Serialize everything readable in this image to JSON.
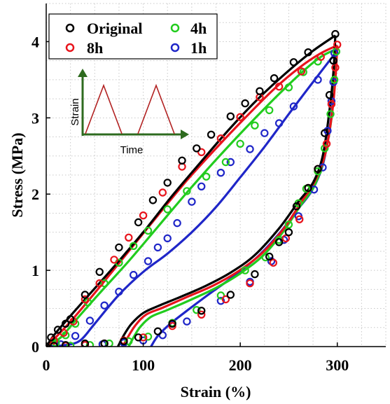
{
  "chart_data": {
    "type": "scatter",
    "xlabel": "Strain (%)",
    "ylabel": "Stress (MPa)",
    "xlim": [
      0,
      350
    ],
    "ylim": [
      0,
      4.5
    ],
    "xticks": [
      "0",
      "100",
      "200",
      "300"
    ],
    "yticks": [
      "0",
      "1",
      "2",
      "3",
      "4"
    ],
    "grid": "dotted",
    "legend_position": "top-left",
    "series": [
      {
        "name": "Original",
        "color": "#000000",
        "points": [
          [
            0,
            0
          ],
          [
            5,
            0.12
          ],
          [
            12,
            0.22
          ],
          [
            20,
            0.3
          ],
          [
            25,
            0.36
          ],
          [
            40,
            0.68
          ],
          [
            55,
            0.98
          ],
          [
            75,
            1.3
          ],
          [
            95,
            1.63
          ],
          [
            110,
            1.92
          ],
          [
            125,
            2.15
          ],
          [
            140,
            2.44
          ],
          [
            155,
            2.6
          ],
          [
            170,
            2.78
          ],
          [
            190,
            3.02
          ],
          [
            205,
            3.19
          ],
          [
            220,
            3.35
          ],
          [
            235,
            3.52
          ],
          [
            255,
            3.73
          ],
          [
            270,
            3.86
          ],
          [
            298,
            4.1
          ],
          [
            296,
            3.75
          ],
          [
            292,
            3.3
          ],
          [
            287,
            2.8
          ],
          [
            280,
            2.33
          ],
          [
            270,
            2.08
          ],
          [
            258,
            1.84
          ],
          [
            250,
            1.5
          ],
          [
            240,
            1.37
          ],
          [
            230,
            1.18
          ],
          [
            215,
            0.95
          ],
          [
            190,
            0.68
          ],
          [
            160,
            0.47
          ],
          [
            130,
            0.3
          ],
          [
            115,
            0.2
          ],
          [
            95,
            0.12
          ],
          [
            80,
            0.07
          ],
          [
            60,
            0.04
          ],
          [
            40,
            0.04
          ],
          [
            20,
            0.02
          ],
          [
            8,
            0.01
          ]
        ],
        "fit_load": [
          [
            0,
            0
          ],
          [
            8,
            0.15
          ],
          [
            20,
            0.33
          ],
          [
            40,
            0.62
          ],
          [
            70,
            1.05
          ],
          [
            100,
            1.5
          ],
          [
            130,
            1.98
          ],
          [
            160,
            2.43
          ],
          [
            190,
            2.87
          ],
          [
            220,
            3.27
          ],
          [
            250,
            3.62
          ],
          [
            275,
            3.88
          ],
          [
            298,
            4.08
          ]
        ],
        "fit_unload": [
          [
            298,
            4.08
          ],
          [
            296,
            3.6
          ],
          [
            292,
            3.1
          ],
          [
            285,
            2.5
          ],
          [
            275,
            2.15
          ],
          [
            260,
            1.9
          ],
          [
            240,
            1.55
          ],
          [
            215,
            1.2
          ],
          [
            190,
            0.97
          ],
          [
            165,
            0.8
          ],
          [
            140,
            0.66
          ],
          [
            115,
            0.53
          ],
          [
            100,
            0.44
          ],
          [
            88,
            0.3
          ],
          [
            80,
            0.15
          ],
          [
            74,
            0
          ]
        ]
      },
      {
        "name": "8h",
        "color": "#e8141c",
        "points": [
          [
            0,
            0
          ],
          [
            8,
            0.08
          ],
          [
            18,
            0.18
          ],
          [
            28,
            0.33
          ],
          [
            40,
            0.62
          ],
          [
            55,
            0.83
          ],
          [
            70,
            1.14
          ],
          [
            85,
            1.43
          ],
          [
            100,
            1.72
          ],
          [
            120,
            2.02
          ],
          [
            140,
            2.36
          ],
          [
            160,
            2.55
          ],
          [
            180,
            2.73
          ],
          [
            200,
            3.01
          ],
          [
            220,
            3.27
          ],
          [
            240,
            3.41
          ],
          [
            263,
            3.61
          ],
          [
            283,
            3.8
          ],
          [
            300,
            3.96
          ],
          [
            298,
            3.66
          ],
          [
            294,
            3.18
          ],
          [
            289,
            2.66
          ],
          [
            280,
            2.33
          ],
          [
            270,
            2.08
          ],
          [
            261,
            1.67
          ],
          [
            247,
            1.42
          ],
          [
            234,
            1.1
          ],
          [
            210,
            0.83
          ],
          [
            185,
            0.62
          ],
          [
            160,
            0.42
          ],
          [
            130,
            0.27
          ],
          [
            100,
            0.12
          ],
          [
            80,
            0.08
          ],
          [
            60,
            0.04
          ],
          [
            40,
            0.02
          ],
          [
            20,
            0.01
          ]
        ],
        "fit_load": [
          [
            0,
            0
          ],
          [
            12,
            0.15
          ],
          [
            30,
            0.4
          ],
          [
            55,
            0.78
          ],
          [
            85,
            1.25
          ],
          [
            115,
            1.72
          ],
          [
            145,
            2.18
          ],
          [
            175,
            2.6
          ],
          [
            205,
            3.0
          ],
          [
            235,
            3.38
          ],
          [
            260,
            3.65
          ],
          [
            282,
            3.84
          ],
          [
            300,
            3.95
          ]
        ],
        "fit_unload": [
          [
            300,
            3.95
          ],
          [
            298,
            3.5
          ],
          [
            294,
            3.0
          ],
          [
            287,
            2.5
          ],
          [
            276,
            2.15
          ],
          [
            262,
            1.88
          ],
          [
            245,
            1.55
          ],
          [
            222,
            1.22
          ],
          [
            197,
            0.98
          ],
          [
            172,
            0.8
          ],
          [
            145,
            0.65
          ],
          [
            120,
            0.51
          ],
          [
            103,
            0.42
          ],
          [
            92,
            0.28
          ],
          [
            84,
            0.12
          ],
          [
            79,
            0
          ]
        ]
      },
      {
        "name": "4h",
        "color": "#22cc1e",
        "points": [
          [
            0,
            0
          ],
          [
            10,
            0.05
          ],
          [
            20,
            0.15
          ],
          [
            30,
            0.3
          ],
          [
            43,
            0.58
          ],
          [
            60,
            0.83
          ],
          [
            75,
            1.1
          ],
          [
            90,
            1.32
          ],
          [
            105,
            1.52
          ],
          [
            125,
            1.8
          ],
          [
            145,
            2.04
          ],
          [
            165,
            2.23
          ],
          [
            185,
            2.42
          ],
          [
            200,
            2.66
          ],
          [
            215,
            2.9
          ],
          [
            230,
            3.1
          ],
          [
            250,
            3.4
          ],
          [
            265,
            3.6
          ],
          [
            280,
            3.74
          ],
          [
            299,
            3.87
          ],
          [
            297,
            3.5
          ],
          [
            293,
            3.05
          ],
          [
            287,
            2.6
          ],
          [
            280,
            2.3
          ],
          [
            268,
            2.07
          ],
          [
            260,
            1.88
          ],
          [
            250,
            1.6
          ],
          [
            240,
            1.4
          ],
          [
            226,
            1.17
          ],
          [
            205,
            1.0
          ],
          [
            180,
            0.67
          ],
          [
            155,
            0.48
          ],
          [
            130,
            0.31
          ],
          [
            105,
            0.13
          ],
          [
            85,
            0.07
          ],
          [
            65,
            0.04
          ],
          [
            45,
            0.02
          ],
          [
            25,
            0.01
          ]
        ],
        "fit_load": [
          [
            0,
            0
          ],
          [
            15,
            0.12
          ],
          [
            30,
            0.34
          ],
          [
            55,
            0.7
          ],
          [
            85,
            1.12
          ],
          [
            115,
            1.57
          ],
          [
            145,
            2.02
          ],
          [
            175,
            2.45
          ],
          [
            205,
            2.86
          ],
          [
            235,
            3.25
          ],
          [
            262,
            3.58
          ],
          [
            283,
            3.8
          ],
          [
            299,
            3.9
          ]
        ],
        "fit_unload": [
          [
            299,
            3.9
          ],
          [
            297,
            3.4
          ],
          [
            293,
            2.9
          ],
          [
            286,
            2.45
          ],
          [
            276,
            2.1
          ],
          [
            262,
            1.85
          ],
          [
            245,
            1.52
          ],
          [
            224,
            1.2
          ],
          [
            200,
            0.96
          ],
          [
            175,
            0.77
          ],
          [
            150,
            0.62
          ],
          [
            125,
            0.48
          ],
          [
            108,
            0.39
          ],
          [
            97,
            0.26
          ],
          [
            90,
            0.12
          ],
          [
            85,
            0
          ]
        ]
      },
      {
        "name": "1h",
        "color": "#1f26c8",
        "points": [
          [
            0,
            0
          ],
          [
            15,
            0.03
          ],
          [
            30,
            0.14
          ],
          [
            45,
            0.34
          ],
          [
            60,
            0.54
          ],
          [
            75,
            0.72
          ],
          [
            90,
            0.94
          ],
          [
            105,
            1.12
          ],
          [
            115,
            1.3
          ],
          [
            125,
            1.42
          ],
          [
            135,
            1.62
          ],
          [
            150,
            1.9
          ],
          [
            160,
            2.1
          ],
          [
            180,
            2.28
          ],
          [
            190,
            2.42
          ],
          [
            210,
            2.59
          ],
          [
            225,
            2.8
          ],
          [
            240,
            2.93
          ],
          [
            255,
            3.15
          ],
          [
            280,
            3.5
          ],
          [
            297,
            3.85
          ],
          [
            296,
            3.47
          ],
          [
            294,
            3.22
          ],
          [
            290,
            2.83
          ],
          [
            285,
            2.35
          ],
          [
            276,
            2.06
          ],
          [
            260,
            1.71
          ],
          [
            245,
            1.4
          ],
          [
            232,
            1.12
          ],
          [
            210,
            0.85
          ],
          [
            180,
            0.6
          ],
          [
            145,
            0.33
          ],
          [
            120,
            0.15
          ],
          [
            100,
            0.08
          ],
          [
            80,
            0.05
          ],
          [
            58,
            0.03
          ],
          [
            40,
            0.02
          ]
        ],
        "fit_load": [
          [
            0,
            0
          ],
          [
            20,
            0.02
          ],
          [
            35,
            0.08
          ],
          [
            50,
            0.3
          ],
          [
            75,
            0.68
          ],
          [
            100,
            0.98
          ],
          [
            125,
            1.22
          ],
          [
            150,
            1.5
          ],
          [
            175,
            1.83
          ],
          [
            200,
            2.22
          ],
          [
            225,
            2.62
          ],
          [
            250,
            3.05
          ],
          [
            272,
            3.42
          ],
          [
            298,
            3.85
          ]
        ],
        "fit_unload": [
          [
            298,
            3.85
          ],
          [
            296,
            3.3
          ],
          [
            292,
            2.85
          ],
          [
            285,
            2.38
          ],
          [
            274,
            2.05
          ],
          [
            258,
            1.78
          ],
          [
            240,
            1.48
          ],
          [
            218,
            1.18
          ],
          [
            193,
            0.92
          ],
          [
            168,
            0.69
          ],
          [
            145,
            0.47
          ],
          [
            127,
            0.29
          ],
          [
            115,
            0.14
          ],
          [
            108,
            0
          ]
        ]
      }
    ],
    "inset": {
      "y_label": "Strain",
      "x_label": "Time",
      "color": "#2e6b1f",
      "triangle_color": "#b22222"
    }
  }
}
